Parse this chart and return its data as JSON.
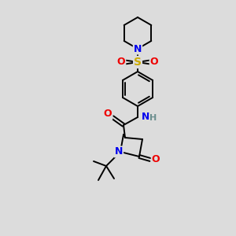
{
  "bg_color": "#dcdcdc",
  "atom_colors": {
    "C": "#000000",
    "N": "#0000ee",
    "O": "#ee0000",
    "S": "#ccaa00",
    "H": "#6b8e8e"
  },
  "bond_color": "#000000",
  "bond_lw": 1.4,
  "figsize": [
    3.0,
    3.0
  ],
  "dpi": 100
}
